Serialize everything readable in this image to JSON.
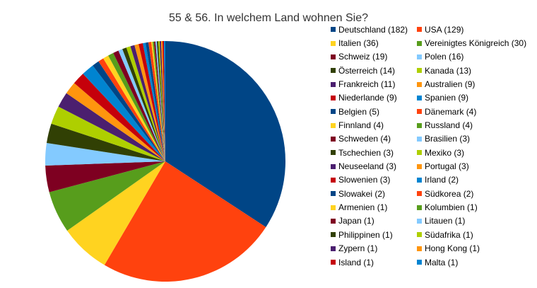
{
  "chart_data": {
    "type": "pie",
    "title": "55 & 56. In welchem Land wohnen Sie?",
    "legend_position": "right",
    "slices": [
      {
        "label": "Deutschland",
        "value": 182,
        "legend": "Deutschland (182)",
        "color": "#004586"
      },
      {
        "label": "USA",
        "value": 129,
        "legend": "USA (129)",
        "color": "#ff420e"
      },
      {
        "label": "Italien",
        "value": 36,
        "legend": "Italien (36)",
        "color": "#ffd320"
      },
      {
        "label": "Vereinigtes Königreich",
        "value": 30,
        "legend": "Vereinigtes Königreich (30)",
        "color": "#579d1c"
      },
      {
        "label": "Schweiz",
        "value": 19,
        "legend": "Schweiz (19)",
        "color": "#7e0021"
      },
      {
        "label": "Polen",
        "value": 16,
        "legend": "Polen (16)",
        "color": "#83caff"
      },
      {
        "label": "Österreich",
        "value": 14,
        "legend": "Österreich (14)",
        "color": "#314004"
      },
      {
        "label": "Kanada",
        "value": 13,
        "legend": "Kanada (13)",
        "color": "#aecf00"
      },
      {
        "label": "Frankreich",
        "value": 11,
        "legend": "Frankreich (11)",
        "color": "#4b1f6f"
      },
      {
        "label": "Australien",
        "value": 9,
        "legend": "Australien (9)",
        "color": "#ff950e"
      },
      {
        "label": "Niederlande",
        "value": 9,
        "legend": "Niederlande (9)",
        "color": "#c5000b"
      },
      {
        "label": "Spanien",
        "value": 9,
        "legend": "Spanien (9)",
        "color": "#0084d1"
      },
      {
        "label": "Belgien",
        "value": 5,
        "legend": "Belgien (5)",
        "color": "#004586"
      },
      {
        "label": "Dänemark",
        "value": 4,
        "legend": "Dänemark (4)",
        "color": "#ff420e"
      },
      {
        "label": "Finnland",
        "value": 4,
        "legend": "Finnland (4)",
        "color": "#ffd320"
      },
      {
        "label": "Russland",
        "value": 4,
        "legend": "Russland (4)",
        "color": "#579d1c"
      },
      {
        "label": "Schweden",
        "value": 4,
        "legend": "Schweden (4)",
        "color": "#7e0021"
      },
      {
        "label": "Brasilien",
        "value": 3,
        "legend": "Brasilien (3)",
        "color": "#83caff"
      },
      {
        "label": "Tschechien",
        "value": 3,
        "legend": "Tschechien (3)",
        "color": "#314004"
      },
      {
        "label": "Mexiko",
        "value": 3,
        "legend": "Mexiko (3)",
        "color": "#aecf00"
      },
      {
        "label": "Neuseeland",
        "value": 3,
        "legend": "Neuseeland (3)",
        "color": "#4b1f6f"
      },
      {
        "label": "Portugal",
        "value": 3,
        "legend": "Portugal (3)",
        "color": "#ff950e"
      },
      {
        "label": "Slowenien",
        "value": 3,
        "legend": "Slowenien (3)",
        "color": "#c5000b"
      },
      {
        "label": "Irland",
        "value": 2,
        "legend": "Irland (2)",
        "color": "#0084d1"
      },
      {
        "label": "Slowakei",
        "value": 2,
        "legend": "Slowakei (2)",
        "color": "#004586"
      },
      {
        "label": "Südkorea",
        "value": 2,
        "legend": "Südkorea (2)",
        "color": "#ff420e"
      },
      {
        "label": "Armenien",
        "value": 1,
        "legend": "Armenien (1)",
        "color": "#ffd320"
      },
      {
        "label": "Kolumbien",
        "value": 1,
        "legend": "Kolumbien (1)",
        "color": "#579d1c"
      },
      {
        "label": "Japan",
        "value": 1,
        "legend": "Japan (1)",
        "color": "#7e0021"
      },
      {
        "label": "Litauen",
        "value": 1,
        "legend": "Litauen (1)",
        "color": "#83caff"
      },
      {
        "label": "Philippinen",
        "value": 1,
        "legend": "Philippinen (1)",
        "color": "#314004"
      },
      {
        "label": "Südafrika",
        "value": 1,
        "legend": "Südafrika (1)",
        "color": "#aecf00"
      },
      {
        "label": "Zypern",
        "value": 1,
        "legend": "Zypern (1)",
        "color": "#4b1f6f"
      },
      {
        "label": "Hong Kong",
        "value": 1,
        "legend": "Hong Kong (1)",
        "color": "#ff950e"
      },
      {
        "label": "Island",
        "value": 1,
        "legend": "Island (1)",
        "color": "#c5000b"
      },
      {
        "label": "Malta",
        "value": 1,
        "legend": "Malta (1)",
        "color": "#0084d1"
      }
    ]
  }
}
